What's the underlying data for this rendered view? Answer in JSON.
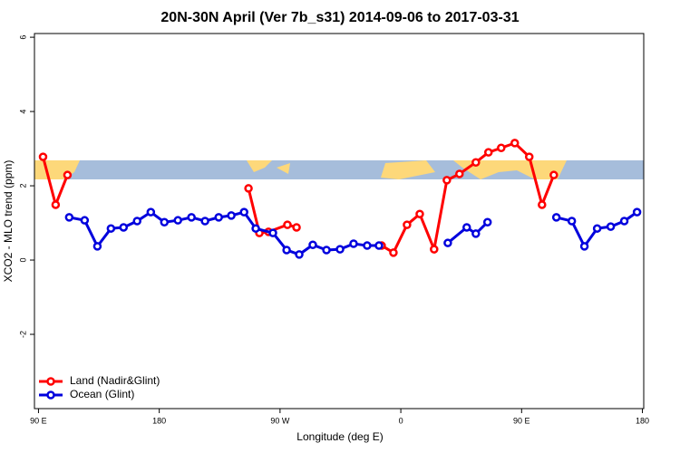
{
  "chart_data": {
    "type": "line",
    "title": "20N-30N April (Ver 7b_s31)   2014-09-06 to 2017-03-31",
    "x_label": "Longitude (deg E)",
    "y_label": "XCO2 - MLO trend (ppm)",
    "xlim": [
      87,
      541
    ],
    "ylim": [
      -4,
      6.1
    ],
    "xticks": [
      {
        "value": 90,
        "label": "90 E"
      },
      180,
      {
        "value": 270,
        "label": "90 W"
      },
      {
        "value": 360,
        "label": "0"
      },
      {
        "value": 450,
        "label": "90 E"
      },
      {
        "value": 540,
        "label": "180"
      }
    ],
    "yticks": [
      -2,
      0,
      2,
      4,
      6
    ],
    "legend": "bottom-left",
    "series": [
      {
        "name": "Land (Nadir&Glint)",
        "color": "#ff0000",
        "x": [
          93.4,
          102.8,
          111.6,
          null,
          246.5,
          254.6,
          261.4,
          275.5,
          282.3,
          null,
          345.7,
          354.5,
          364.6,
          374.1,
          384.8,
          394.3,
          403.7,
          415.9,
          425.3,
          434.8,
          444.9,
          455.7,
          465.2,
          474.0
        ],
        "values": [
          2.78,
          1.49,
          2.29,
          null,
          1.93,
          0.73,
          0.76,
          0.95,
          0.88,
          null,
          0.39,
          0.2,
          0.95,
          1.24,
          0.29,
          2.15,
          2.32,
          2.63,
          2.9,
          3.02,
          3.15,
          2.78,
          1.49,
          2.29
        ]
      },
      {
        "name": "Ocean (Glint)",
        "color": "#0000dd",
        "x": [
          112.9,
          124.4,
          133.9,
          144,
          153.4,
          163.5,
          173.7,
          183.8,
          193.9,
          204,
          214.1,
          224.3,
          233.7,
          243.2,
          251.9,
          264.7,
          274.9,
          284.3,
          294.4,
          304.6,
          314.7,
          324.8,
          334.9,
          343.7,
          null,
          395,
          409.1,
          415.9,
          424.6,
          null,
          475.9,
          487.4,
          496.8,
          506.3,
          516.4,
          526.5,
          536
        ],
        "values": [
          1.15,
          1.07,
          0.37,
          0.85,
          0.88,
          1.05,
          1.29,
          1.02,
          1.07,
          1.15,
          1.05,
          1.15,
          1.2,
          1.29,
          0.85,
          0.73,
          0.27,
          0.15,
          0.41,
          0.27,
          0.29,
          0.44,
          0.39,
          0.39,
          null,
          0.46,
          0.88,
          0.71,
          1.02,
          null,
          1.15,
          1.05,
          0.37,
          0.85,
          0.9,
          1.05,
          1.29
        ]
      }
    ]
  }
}
